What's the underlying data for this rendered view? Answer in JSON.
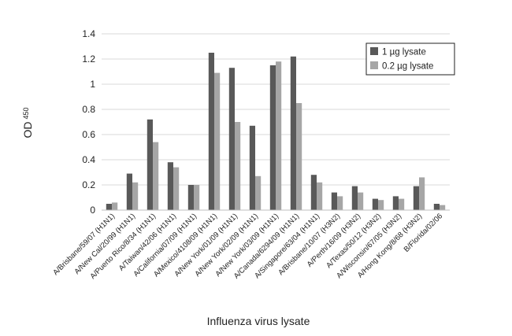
{
  "chart_data": {
    "type": "bar",
    "xlabel": "Influenza virus lysate",
    "ylabel_main": "OD",
    "ylabel_sub": "450",
    "ylim": [
      0,
      1.4
    ],
    "yticks": [
      "0",
      "0.2",
      "0.4",
      "0.6",
      "0.8",
      "1",
      "1.2",
      "1.4"
    ],
    "grid": "horizontal",
    "legend_position": "top-right",
    "categories": [
      "A/Brisbane/59/07 (H1N1)",
      "A/New Cal/20/99 (H1N1)",
      "A/Puerto Rico/8/34 (H1N1)",
      "A/Taiwan/42/06 (H1N1)",
      "A/California/07/09 (H1N1)",
      "A/Mexico/4108/09 (H1N1)",
      "A/New York/01/09 (H1N1)",
      "A/New York/02/09 (H1N1)",
      "A/New York/03/09 (H1N1)",
      "A/Canada/6294/09 (H1N1)",
      "A/Singapore/63/04 (H1N1)",
      "A/Brisbane/10/07 (H3N2)",
      "A/Perth/16/09 (H3N2)",
      "A/Texas/50/12 (H3N2)",
      "A/Wisconsin/67/05 (H3N2)",
      "A/Hong Kong/8/68 (H3N2)",
      "B/Florida/02/06"
    ],
    "series": [
      {
        "name": "1 µg lysate",
        "color": "#595959",
        "values": [
          0.05,
          0.29,
          0.72,
          0.38,
          0.2,
          1.25,
          1.13,
          0.67,
          1.15,
          1.22,
          0.28,
          0.14,
          0.19,
          0.09,
          0.11,
          0.19,
          0.05
        ]
      },
      {
        "name": "0.2 µg lysate",
        "color": "#a6a6a6",
        "values": [
          0.06,
          0.22,
          0.54,
          0.34,
          0.2,
          1.09,
          0.7,
          0.27,
          1.18,
          0.85,
          0.22,
          0.11,
          0.14,
          0.08,
          0.09,
          0.26,
          0.04
        ]
      }
    ]
  }
}
